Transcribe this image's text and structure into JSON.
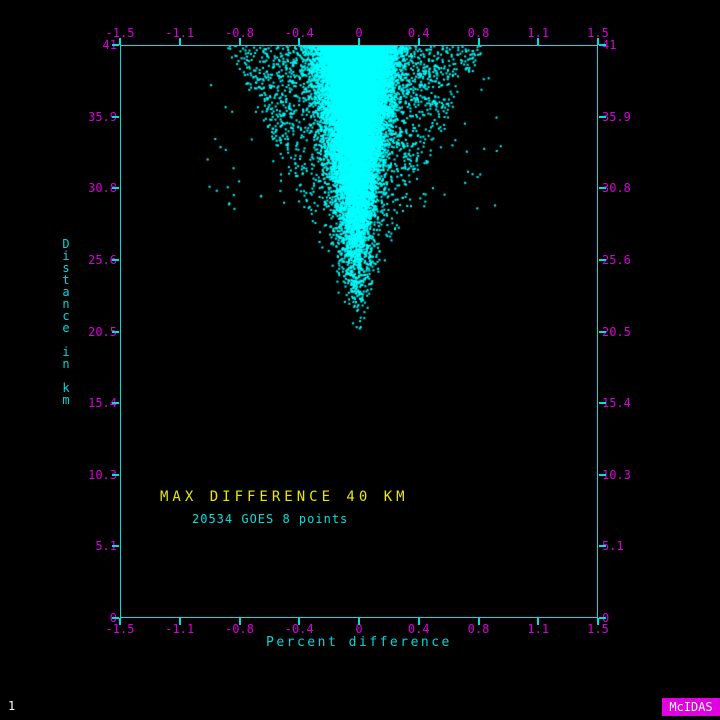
{
  "colors": {
    "background": "#000000",
    "axis": "#00e0e0",
    "points": "#00ffff",
    "tick_labels": "#d800d8",
    "axis_title": "#00d8d8",
    "annotation_title": "#e8e800",
    "annotation_subtitle": "#00e0e0",
    "frame_number": "#ffffff",
    "badge_background": "#e000e0",
    "badge_text": "#ffffff"
  },
  "status": {
    "frame_number": "1",
    "brand": "McIDAS"
  },
  "chart_data": {
    "type": "scatter",
    "title": "",
    "xlabel": "Percent difference",
    "ylabel": "Distance in km",
    "xlim": [
      -1.5,
      1.5
    ],
    "ylim": [
      0,
      41
    ],
    "grid": false,
    "x_ticks": [
      {
        "value": -1.5,
        "label": "-1.5"
      },
      {
        "value": -1.125,
        "label": "-1.1"
      },
      {
        "value": -0.75,
        "label": "-0.8"
      },
      {
        "value": -0.375,
        "label": "-0.4"
      },
      {
        "value": 0,
        "label": "0"
      },
      {
        "value": 0.375,
        "label": "0.4"
      },
      {
        "value": 0.75,
        "label": "0.8"
      },
      {
        "value": 1.125,
        "label": "1.1"
      },
      {
        "value": 1.5,
        "label": "1.5"
      }
    ],
    "y_ticks": [
      {
        "value": 41,
        "label": "41"
      },
      {
        "value": 35.875,
        "label": "35.9"
      },
      {
        "value": 30.75,
        "label": "30.8"
      },
      {
        "value": 25.625,
        "label": "25.6"
      },
      {
        "value": 20.5,
        "label": "20.5"
      },
      {
        "value": 15.375,
        "label": "15.4"
      },
      {
        "value": 10.25,
        "label": "10.3"
      },
      {
        "value": 5.125,
        "label": "5.1"
      },
      {
        "value": 0,
        "label": "0"
      }
    ],
    "annotation_title": "MAX DIFFERENCE 40 KM",
    "annotation_subtitle": "20534 GOES 8 points",
    "point_count": 20534,
    "point_cloud": {
      "description": "Dense funnel-shaped cyan point cloud centered near 0 percent difference: solid core from 41 km at top narrowing to an apex near 19.5 km, with sparse outliers out to about -0.95 and +0.65",
      "seed": 20534,
      "count": 20534,
      "center": -0.02,
      "apex_km": 19.4,
      "top_km": 41,
      "height_power": 0.286,
      "core_fraction": 0.885,
      "tail_fraction": 0.11,
      "core_sigma_min": 0.03,
      "core_sigma_max": 0.1,
      "envelope_base": 0.02,
      "envelope_top": 0.8,
      "envelope_exponent": 1.25,
      "outlier_max": 0.95
    }
  }
}
